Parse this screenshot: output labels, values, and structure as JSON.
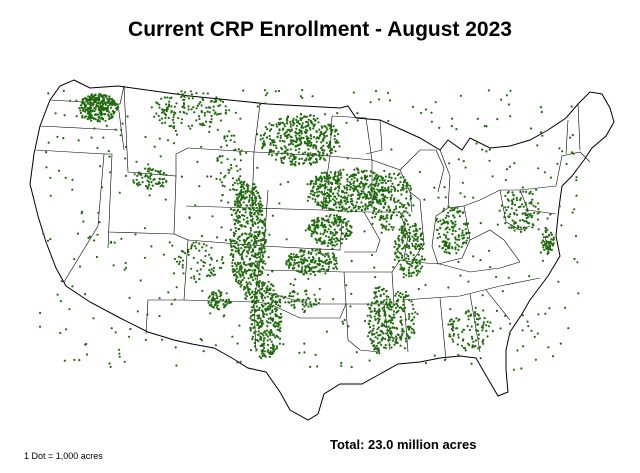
{
  "map": {
    "title": "Current CRP Enrollment - August 2023",
    "total_label": "Total: 23.0 million acres",
    "scale_label": "1 Dot = 1,000 acres",
    "dot_color": "#1e6a0c",
    "state_fill": "#ffffff",
    "border_color": "#000000"
  }
}
